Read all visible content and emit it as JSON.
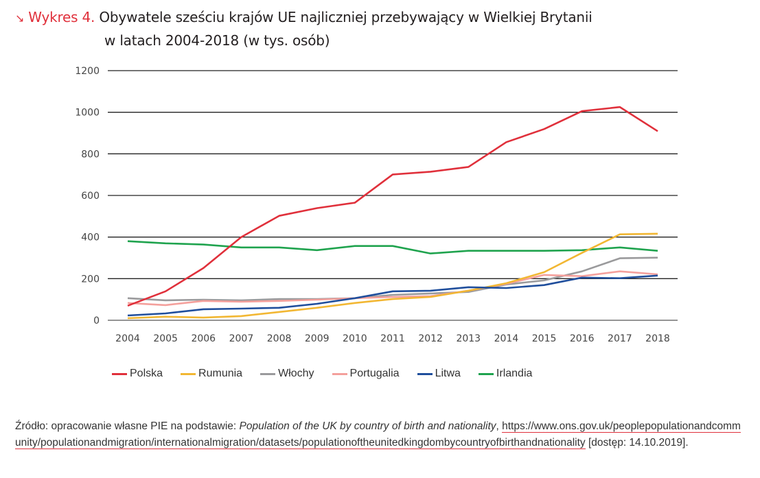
{
  "header": {
    "arrow_icon": "↘",
    "prefix": "Wykres 4.",
    "title_line1": "Obywatele sześciu krajów UE najliczniej przebywający w Wielkiej Brytanii",
    "title_line2": "w latach 2004-2018 (w tys. osób)"
  },
  "chart_data": {
    "type": "line",
    "title": "Obywatele sześciu krajów UE najliczniej przebywający w Wielkiej Brytanii w latach 2004-2018 (w tys. osób)",
    "xlabel": "",
    "ylabel": "",
    "ylim": [
      0,
      1200
    ],
    "yticks": [
      "0",
      "200",
      "400",
      "600",
      "800",
      "1000",
      "1200"
    ],
    "grid": true,
    "legend_position": "bottom-left",
    "categories": [
      "2004",
      "2005",
      "2006",
      "2007",
      "2008",
      "2009",
      "2010",
      "2011",
      "2012",
      "2013",
      "2014",
      "2015",
      "2016",
      "2017",
      "2018"
    ],
    "series": [
      {
        "name": "Polska",
        "color": "#e0303b",
        "values": [
          70,
          139,
          251,
          400,
          502,
          539,
          565,
          701,
          714,
          737,
          856,
          919,
          1005,
          1025,
          909
        ]
      },
      {
        "name": "Rumunia",
        "color": "#f2b733",
        "values": [
          10,
          17,
          13,
          20,
          40,
          60,
          83,
          102,
          112,
          142,
          178,
          231,
          324,
          413,
          416
        ]
      },
      {
        "name": "Włochy",
        "color": "#9a9a9c",
        "values": [
          106,
          96,
          99,
          96,
          102,
          102,
          106,
          122,
          129,
          136,
          172,
          192,
          235,
          298,
          301
        ]
      },
      {
        "name": "Portugalia",
        "color": "#f4a09c",
        "values": [
          83,
          73,
          93,
          89,
          93,
          99,
          106,
          112,
          116,
          142,
          175,
          218,
          212,
          235,
          221
        ]
      },
      {
        "name": "Litwa",
        "color": "#1f4e9c",
        "values": [
          23,
          33,
          53,
          56,
          60,
          79,
          106,
          139,
          142,
          159,
          155,
          169,
          205,
          202,
          215
        ]
      },
      {
        "name": "Irlandia",
        "color": "#1fa34e",
        "values": [
          380,
          370,
          364,
          350,
          350,
          337,
          357,
          357,
          321,
          334,
          334,
          334,
          337,
          350,
          334
        ]
      }
    ]
  },
  "source": {
    "prefix": "Źródło: opracowanie własne PIE na podstawie: ",
    "publication": "Population of the UK by country of birth and nationality",
    "separator": ", ",
    "url": "https://www.ons.gov.uk/peoplepopulationandcommunity/populationandmigration/internationalmigration/datasets/populationoftheunitedkingdombycountryofbirthandnationality",
    "access": " [dostęp: 14.10.2019]."
  }
}
